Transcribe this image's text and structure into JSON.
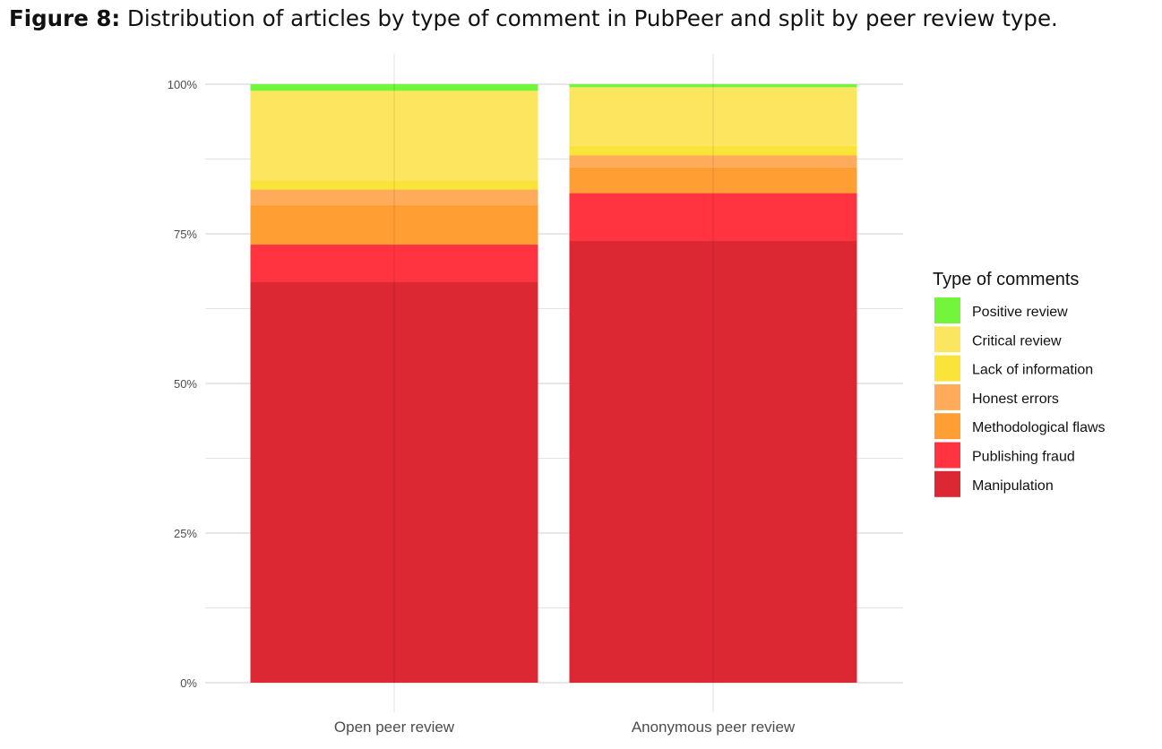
{
  "caption": {
    "label": "Figure 8:",
    "text": " Distribution of articles by type of comment in PubPeer and split by peer review type."
  },
  "chart_data": {
    "type": "bar",
    "stacked": true,
    "categories": [
      "Open peer review",
      "Anonymous peer review"
    ],
    "y_ticks": [
      "0%",
      "25%",
      "50%",
      "75%",
      "100%"
    ],
    "ylim": [
      0,
      100
    ],
    "grid": true,
    "legend_position": "right",
    "legend_title": "Type of comments",
    "series": [
      {
        "name": "Manipulation",
        "color": "#dc2832",
        "values": [
          67.0,
          73.8
        ]
      },
      {
        "name": "Publishing fraud",
        "color": "#ff3440",
        "values": [
          6.2,
          8.0
        ]
      },
      {
        "name": "Methodological flaws",
        "color": "#ff9f33",
        "values": [
          6.6,
          4.3
        ]
      },
      {
        "name": "Honest errors",
        "color": "#ffab59",
        "values": [
          2.6,
          2.0
        ]
      },
      {
        "name": "Lack of information",
        "color": "#fbe43a",
        "values": [
          1.5,
          1.6
        ]
      },
      {
        "name": "Critical review",
        "color": "#fde65f",
        "values": [
          15.0,
          9.8
        ]
      },
      {
        "name": "Positive review",
        "color": "#72f53a",
        "values": [
          1.1,
          0.5
        ]
      }
    ]
  }
}
